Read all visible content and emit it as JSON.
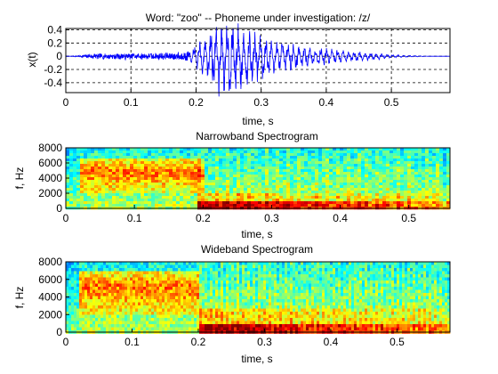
{
  "chart_data": [
    {
      "type": "line",
      "title": "Word: \"zoo\" --  Phoneme under investigation: /z/",
      "xlabel": "time, s",
      "ylabel": "x(t)",
      "xlim": [
        0,
        0.59
      ],
      "ylim": [
        -0.55,
        0.42
      ],
      "xticks": [
        0,
        0.1,
        0.2,
        0.3,
        0.4,
        0.5
      ],
      "xtick_labels": [
        "0",
        "0.1",
        "0.2",
        "0.3",
        "0.4",
        "0.5"
      ],
      "yticks": [
        0.4,
        0.2,
        0,
        -0.2,
        -0.4
      ],
      "ytick_labels": [
        "0.4",
        "0.2",
        "0",
        "-0.2",
        "-0.4"
      ],
      "grid": true,
      "line_color": "#0000ff",
      "envelope": {
        "t": [
          0.0,
          0.02,
          0.04,
          0.08,
          0.12,
          0.16,
          0.19,
          0.21,
          0.23,
          0.25,
          0.27,
          0.29,
          0.32,
          0.35,
          0.38,
          0.41,
          0.44,
          0.47,
          0.5,
          0.53,
          0.56,
          0.59
        ],
        "upper": [
          0.0,
          0.01,
          0.04,
          0.04,
          0.05,
          0.06,
          0.08,
          0.2,
          0.38,
          0.42,
          0.36,
          0.27,
          0.18,
          0.15,
          0.1,
          0.09,
          0.06,
          0.04,
          0.02,
          0.01,
          0.0,
          0.0
        ],
        "lower": [
          0.0,
          -0.01,
          -0.04,
          -0.05,
          -0.05,
          -0.06,
          -0.08,
          -0.22,
          -0.45,
          -0.52,
          -0.43,
          -0.33,
          -0.22,
          -0.18,
          -0.12,
          -0.1,
          -0.07,
          -0.05,
          -0.02,
          -0.01,
          0.0,
          0.0
        ]
      }
    },
    {
      "type": "heatmap",
      "title": "Narrowband Spectrogram",
      "xlabel": "time, s",
      "ylabel": "f, Hz",
      "xlim": [
        0,
        0.56
      ],
      "ylim": [
        0,
        8000
      ],
      "xticks": [
        0,
        0.1,
        0.2,
        0.3,
        0.4,
        0.5
      ],
      "xtick_labels": [
        "0",
        "0.1",
        "0.2",
        "0.3",
        "0.4",
        "0.5"
      ],
      "yticks": [
        8000,
        6000,
        4000,
        2000,
        0
      ],
      "ytick_labels": [
        "8000",
        "6000",
        "4000",
        "2000",
        "0"
      ],
      "colormap": "jet",
      "frication": {
        "t_start": 0.02,
        "t_end": 0.2,
        "f_low": 3500,
        "f_high": 6500
      },
      "voicing": {
        "t_start": 0.19,
        "t_end": 0.56,
        "f_high": 1000
      }
    },
    {
      "type": "heatmap",
      "title": "Wideband Spectrogram",
      "xlabel": "time, s",
      "ylabel": "f, Hz",
      "xlim": [
        0,
        0.58
      ],
      "ylim": [
        0,
        8000
      ],
      "xticks": [
        0,
        0.1,
        0.2,
        0.3,
        0.4,
        0.5
      ],
      "xtick_labels": [
        "0",
        "0.1",
        "0.2",
        "0.3",
        "0.4",
        "0.5"
      ],
      "yticks": [
        8000,
        6000,
        4000,
        2000,
        0
      ],
      "ytick_labels": [
        "8000",
        "6000",
        "4000",
        "2000",
        "0"
      ],
      "colormap": "jet",
      "frication": {
        "t_start": 0.02,
        "t_end": 0.2,
        "f_low": 3500,
        "f_high": 7000
      },
      "voicing": {
        "t_start": 0.2,
        "t_end": 0.58,
        "f_high": 1200
      }
    }
  ]
}
